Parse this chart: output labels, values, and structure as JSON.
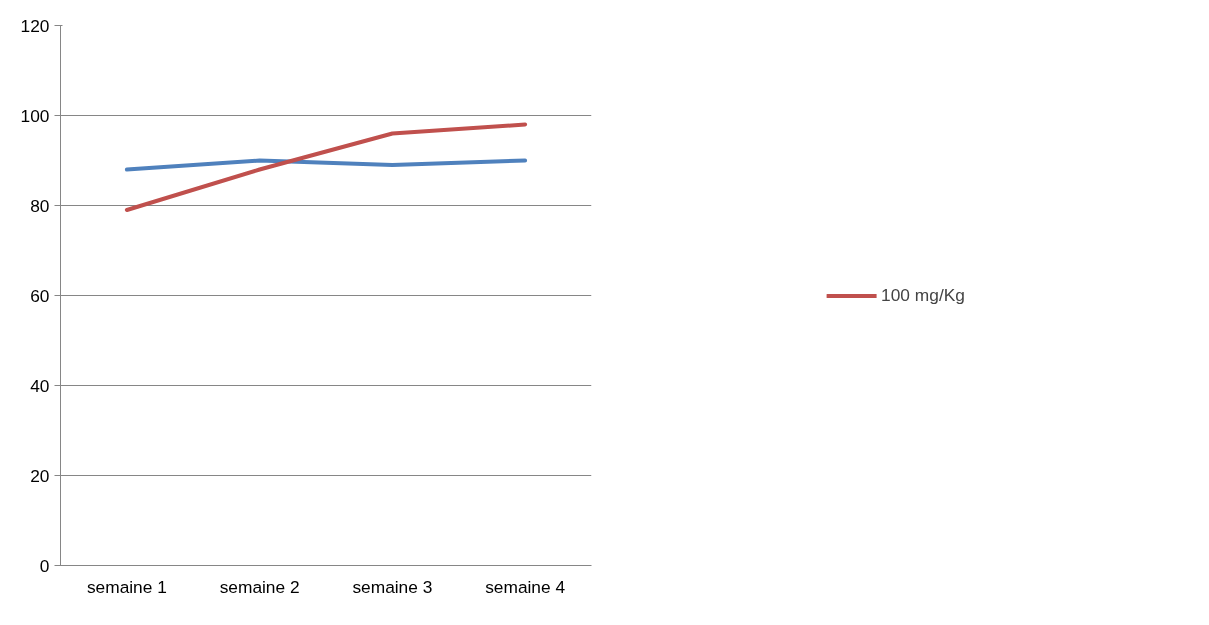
{
  "chart_data": {
    "type": "line",
    "categories": [
      "semaine 1",
      "semaine 2",
      "semaine 3",
      "semaine 4"
    ],
    "series": [
      {
        "color": "#4f81bd",
        "values": [
          88,
          90,
          89,
          90
        ]
      },
      {
        "name": "100 mg/Kg",
        "color": "#c0504d",
        "values": [
          79,
          88,
          96,
          98
        ]
      }
    ],
    "ylim": [
      0,
      120
    ],
    "yticks": [
      0,
      20,
      40,
      60,
      80,
      100,
      120
    ],
    "grid": "y",
    "legend": "right",
    "marker": "none",
    "line_style": "solid"
  }
}
